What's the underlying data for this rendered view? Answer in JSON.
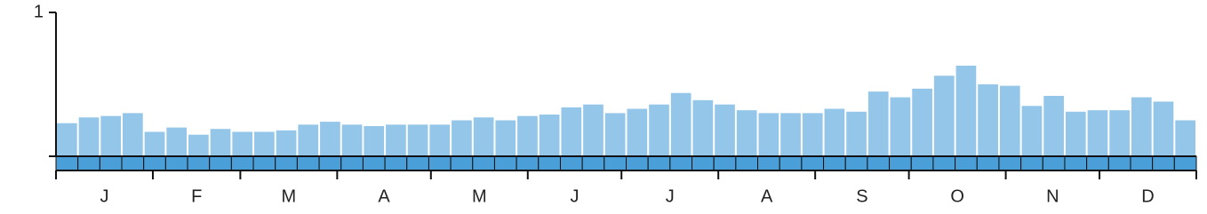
{
  "chart_data": {
    "type": "bar",
    "values": [
      0.23,
      0.27,
      0.28,
      0.3,
      0.17,
      0.2,
      0.15,
      0.19,
      0.17,
      0.17,
      0.18,
      0.22,
      0.24,
      0.22,
      0.21,
      0.22,
      0.22,
      0.22,
      0.25,
      0.27,
      0.25,
      0.28,
      0.29,
      0.34,
      0.36,
      0.3,
      0.33,
      0.36,
      0.44,
      0.39,
      0.36,
      0.32,
      0.3,
      0.3,
      0.3,
      0.33,
      0.31,
      0.45,
      0.41,
      0.47,
      0.56,
      0.63,
      0.5,
      0.49,
      0.35,
      0.42,
      0.31,
      0.32,
      0.32,
      0.41,
      0.38,
      0.25
    ],
    "color": "#93c6e8",
    "months": [
      "J",
      "F",
      "M",
      "A",
      "M",
      "J",
      "J",
      "A",
      "S",
      "O",
      "N",
      "D"
    ],
    "ylim": [
      0,
      1
    ],
    "yticks": [
      1
    ]
  }
}
